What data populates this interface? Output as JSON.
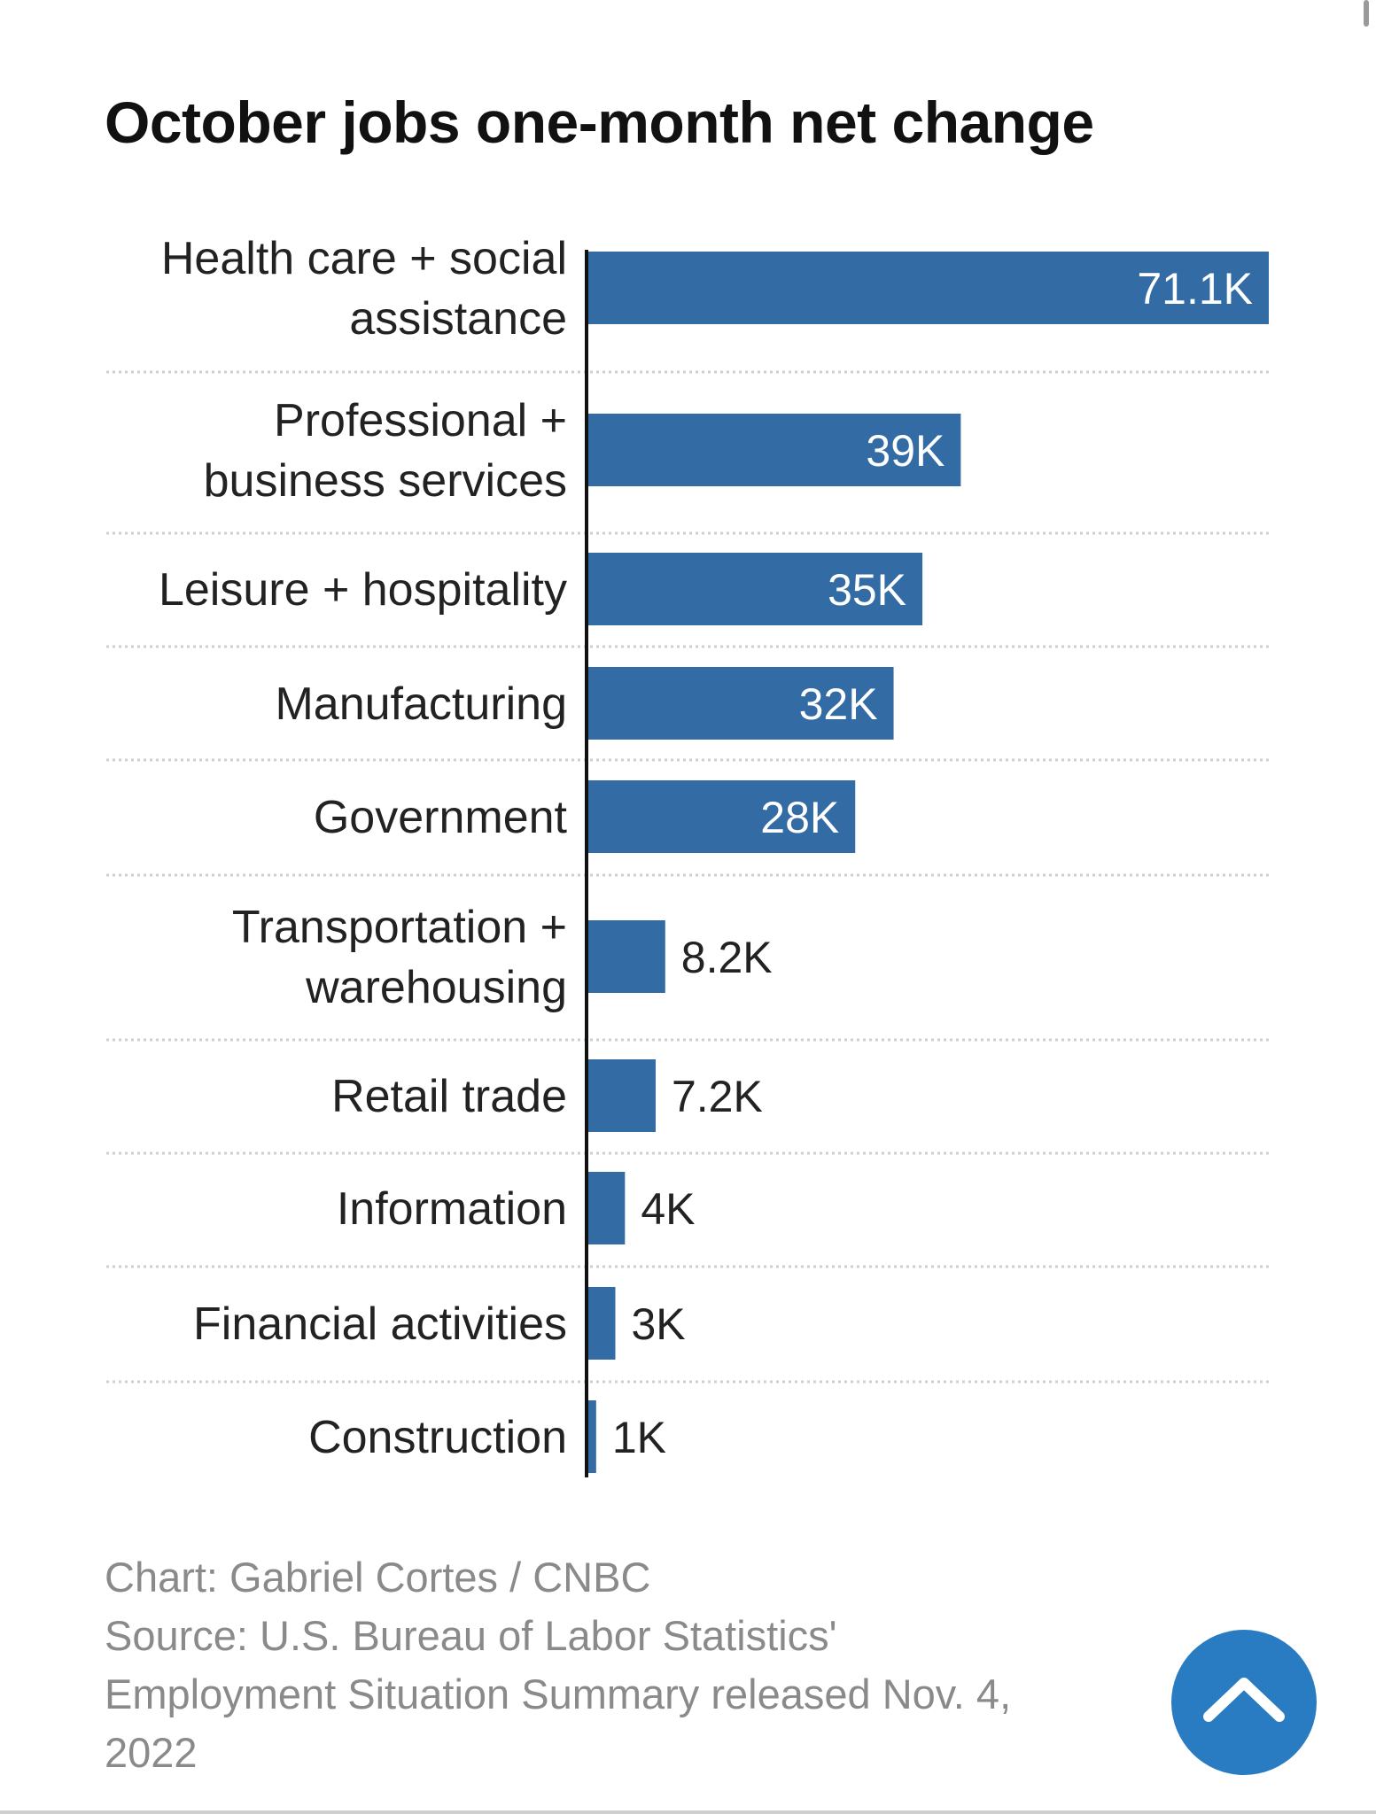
{
  "title": "October jobs one-month net change",
  "chart_data": {
    "type": "bar",
    "orientation": "horizontal",
    "title": "October jobs one-month net change",
    "categories": [
      [
        "Health care + social",
        "assistance"
      ],
      [
        "Professional +",
        "business services"
      ],
      [
        "Leisure + hospitality"
      ],
      [
        "Manufacturing"
      ],
      [
        "Government"
      ],
      [
        "Transportation +",
        "warehousing"
      ],
      [
        "Retail trade"
      ],
      [
        "Information"
      ],
      [
        "Financial activities"
      ],
      [
        "Construction"
      ]
    ],
    "values": [
      71.1,
      39,
      35,
      32,
      28,
      8.2,
      7.2,
      4,
      3,
      1
    ],
    "value_labels": [
      "71.1K",
      "39K",
      "35K",
      "32K",
      "28K",
      "8.2K",
      "7.2K",
      "4K",
      "3K",
      "1K"
    ],
    "xlim": [
      0,
      71.1
    ],
    "bar_color": "#336ba5",
    "grid": false
  },
  "footer": {
    "credit": "Chart: Gabriel Cortes / CNBC",
    "source_lines": [
      "Source: U.S. Bureau of Labor Statistics'",
      "Employment Situation Summary released Nov. 4,",
      "2022"
    ]
  },
  "colors": {
    "bar": "#336ba5",
    "button": "#2a7cc2"
  },
  "icons": {
    "back_to_top": "chevron-up-icon"
  }
}
